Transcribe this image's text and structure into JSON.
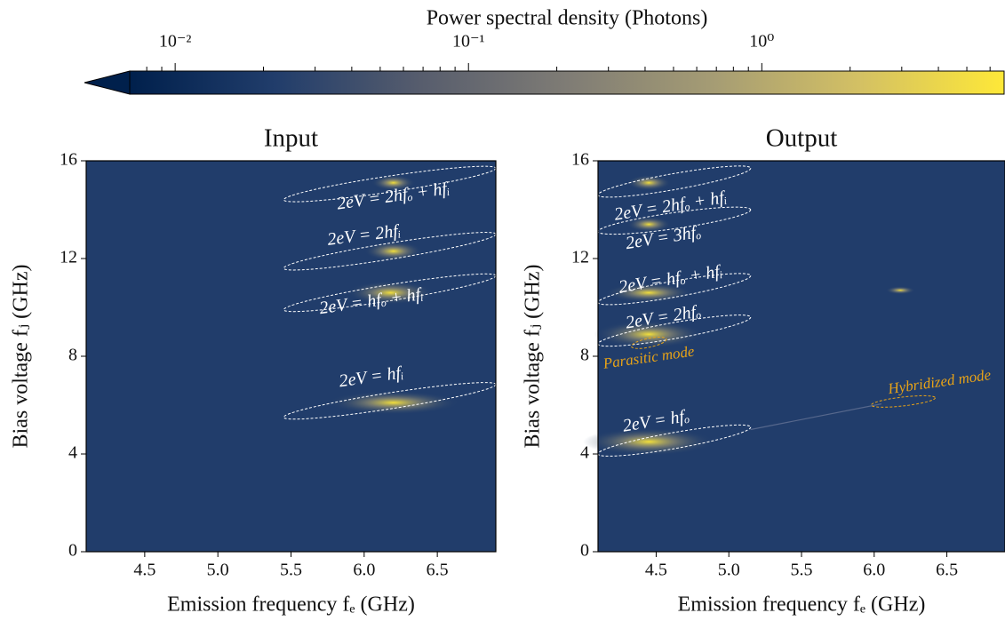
{
  "colorbar": {
    "label": "Power spectral density (Photons)",
    "scale": "log",
    "clim": [
      0.007,
      6.7
    ],
    "extend": "min",
    "colormap": [
      "#00204c",
      "#213d6b",
      "#575d6d",
      "#7f7c75",
      "#a59c74",
      "#d3c064",
      "#fee838"
    ],
    "ticks": [
      {
        "value": 0.01,
        "label": "10⁻²"
      },
      {
        "value": 0.1,
        "label": "10⁻¹"
      },
      {
        "value": 1,
        "label": "10⁰"
      }
    ],
    "minor_ticks": [
      0.008,
      0.009,
      0.02,
      0.03,
      0.04,
      0.05,
      0.06,
      0.07,
      0.08,
      0.09,
      0.2,
      0.3,
      0.4,
      0.5,
      0.6,
      0.7,
      0.8,
      0.9,
      2,
      3,
      4,
      5,
      6
    ]
  },
  "chart_data": [
    {
      "type": "heatmap",
      "title": "Input",
      "xlabel": "Emission frequency fₑ (GHz)",
      "ylabel": "Bias voltage fⱼ (GHz)",
      "xlim": [
        4.1,
        6.9
      ],
      "ylim": [
        0,
        16
      ],
      "xticks": [
        4.5,
        {
          "value": 5,
          "label": "5.0"
        },
        5.5,
        {
          "value": 6,
          "label": "6.0"
        },
        6.5
      ],
      "yticks": [
        0,
        4,
        8,
        12,
        16
      ],
      "annotations": [
        "2eV = 2hfₒ + hfᵢ",
        "2eV = 2hfᵢ",
        "2eV = hfₒ + hfᵢ",
        "2eV = hfᵢ"
      ]
    },
    {
      "type": "heatmap",
      "title": "Output",
      "xlabel": "Emission frequency fₑ (GHz)",
      "ylabel": "Bias voltage fⱼ (GHz)",
      "xlim": [
        4.1,
        6.9
      ],
      "ylim": [
        0,
        16
      ],
      "xticks": [
        4.5,
        {
          "value": 5,
          "label": "5.0"
        },
        5.5,
        {
          "value": 6,
          "label": "6.0"
        },
        6.5
      ],
      "yticks": [
        0,
        4,
        8,
        12,
        16
      ],
      "annotations": [
        "2eV = 2hfₒ + hfᵢ",
        "2eV = 3hfₒ",
        "2eV = hfₒ + hfᵢ",
        "2eV = 2hfₒ",
        "Parasitic mode",
        "2eV = hfₒ",
        "Hybridized mode"
      ]
    }
  ]
}
